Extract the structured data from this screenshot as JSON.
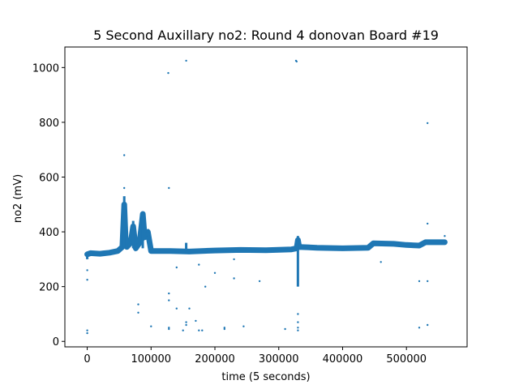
{
  "chart_data": {
    "type": "scatter",
    "title": "5 Second Auxillary no2: Round 4 donovan Board #19",
    "xlabel": "time (5 seconds)",
    "ylabel": "no2 (mV)",
    "xlim": [
      -35000,
      595000
    ],
    "ylim": [
      -20,
      1075
    ],
    "x_ticks": [
      0,
      100000,
      200000,
      300000,
      400000,
      500000
    ],
    "x_tick_labels": [
      "0",
      "100000",
      "200000",
      "300000",
      "400000",
      "500000"
    ],
    "y_ticks": [
      0,
      200,
      400,
      600,
      800,
      1000
    ],
    "y_tick_labels": [
      "0",
      "200",
      "400",
      "600",
      "800",
      "1000"
    ],
    "grid": false,
    "legend": "none",
    "series": [
      {
        "color": "#1f77b4",
        "baseline": [
          [
            0,
            318
          ],
          [
            5000,
            322
          ],
          [
            20000,
            320
          ],
          [
            35000,
            324
          ],
          [
            48000,
            330
          ],
          [
            55000,
            345
          ],
          [
            58000,
            500
          ],
          [
            60000,
            380
          ],
          [
            62000,
            345
          ],
          [
            68000,
            360
          ],
          [
            72000,
            420
          ],
          [
            76000,
            340
          ],
          [
            82000,
            360
          ],
          [
            87000,
            465
          ],
          [
            90000,
            380
          ],
          [
            95000,
            400
          ],
          [
            100000,
            330
          ],
          [
            130000,
            330
          ],
          [
            160000,
            328
          ],
          [
            200000,
            332
          ],
          [
            240000,
            334
          ],
          [
            280000,
            333
          ],
          [
            320000,
            336
          ],
          [
            328000,
            340
          ],
          [
            330000,
            370
          ],
          [
            332000,
            345
          ],
          [
            360000,
            342
          ],
          [
            400000,
            340
          ],
          [
            440000,
            342
          ],
          [
            448000,
            358
          ],
          [
            480000,
            356
          ],
          [
            500000,
            352
          ],
          [
            520000,
            350
          ],
          [
            530000,
            362
          ],
          [
            560000,
            362
          ]
        ],
        "spikes": [
          [
            0,
            300,
            325
          ],
          [
            330000,
            340,
            385
          ],
          [
            58000,
            340,
            530
          ],
          [
            87000,
            340,
            475
          ],
          [
            72000,
            340,
            440
          ],
          [
            155000,
            330,
            360
          ],
          [
            330000,
            200,
            340
          ]
        ],
        "outliers": [
          [
            0,
            30
          ],
          [
            0,
            40
          ],
          [
            0,
            225
          ],
          [
            0,
            260
          ],
          [
            58000,
            680
          ],
          [
            58000,
            560
          ],
          [
            80000,
            105
          ],
          [
            80000,
            135
          ],
          [
            100000,
            55
          ],
          [
            127000,
            980
          ],
          [
            128000,
            560
          ],
          [
            128000,
            45
          ],
          [
            128000,
            50
          ],
          [
            128000,
            175
          ],
          [
            128000,
            150
          ],
          [
            140000,
            120
          ],
          [
            150000,
            40
          ],
          [
            155000,
            1025
          ],
          [
            155000,
            70
          ],
          [
            155000,
            60
          ],
          [
            160000,
            120
          ],
          [
            170000,
            75
          ],
          [
            175000,
            40
          ],
          [
            180000,
            40
          ],
          [
            185000,
            200
          ],
          [
            200000,
            250
          ],
          [
            215000,
            45
          ],
          [
            215000,
            50
          ],
          [
            230000,
            230
          ],
          [
            245000,
            55
          ],
          [
            270000,
            220
          ],
          [
            310000,
            45
          ],
          [
            327000,
            1025
          ],
          [
            328000,
            1022
          ],
          [
            330000,
            100
          ],
          [
            330000,
            70
          ],
          [
            330000,
            50
          ],
          [
            330000,
            40
          ],
          [
            330000,
            225
          ],
          [
            330000,
            290
          ],
          [
            460000,
            290
          ],
          [
            520000,
            50
          ],
          [
            520000,
            220
          ],
          [
            533000,
            797
          ],
          [
            533000,
            60
          ],
          [
            533000,
            430
          ],
          [
            533000,
            220
          ],
          [
            560000,
            385
          ],
          [
            140000,
            270
          ],
          [
            175000,
            280
          ],
          [
            230000,
            300
          ]
        ]
      }
    ]
  }
}
